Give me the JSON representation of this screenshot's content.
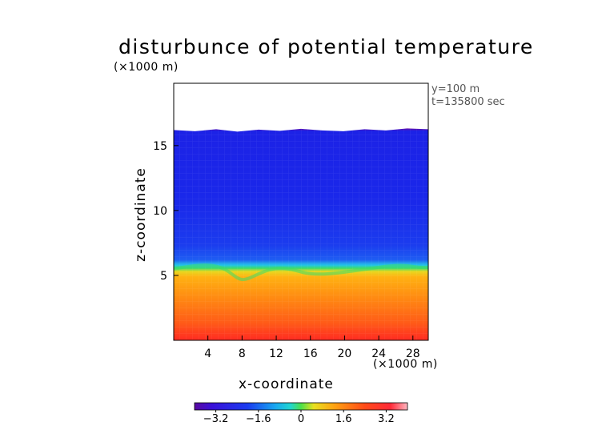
{
  "chart_data": {
    "type": "heatmap",
    "title": "disturbunce of potential temperature",
    "z_units": "(×1000 m)",
    "x_units": "(×1000 m)",
    "annotations": [
      "y=100 m",
      "t=135800 sec"
    ],
    "xlabel": "x-coordinate",
    "ylabel": "z-coordinate",
    "xlim": [
      0,
      29.8
    ],
    "ylim": [
      0,
      19.8
    ],
    "xticks": [
      4,
      8,
      12,
      16,
      20,
      24,
      28
    ],
    "yticks": [
      5,
      10,
      15
    ],
    "data_top_km": 16.2,
    "description_levels": {
      "below_inversion": "warm disturbance (+1.6 to +3.2) increasing toward surface",
      "inversion_height_km": 5.5,
      "above_inversion": "cold disturbance (about -2.4 to -3.0)"
    },
    "colorbar": {
      "range": [
        -4.0,
        4.0
      ],
      "ticks": [
        "−3.2",
        "−1.6",
        "0",
        "1.6",
        "3.2"
      ],
      "tick_values": [
        -3.2,
        -1.6,
        0,
        1.6,
        3.2
      ]
    }
  }
}
